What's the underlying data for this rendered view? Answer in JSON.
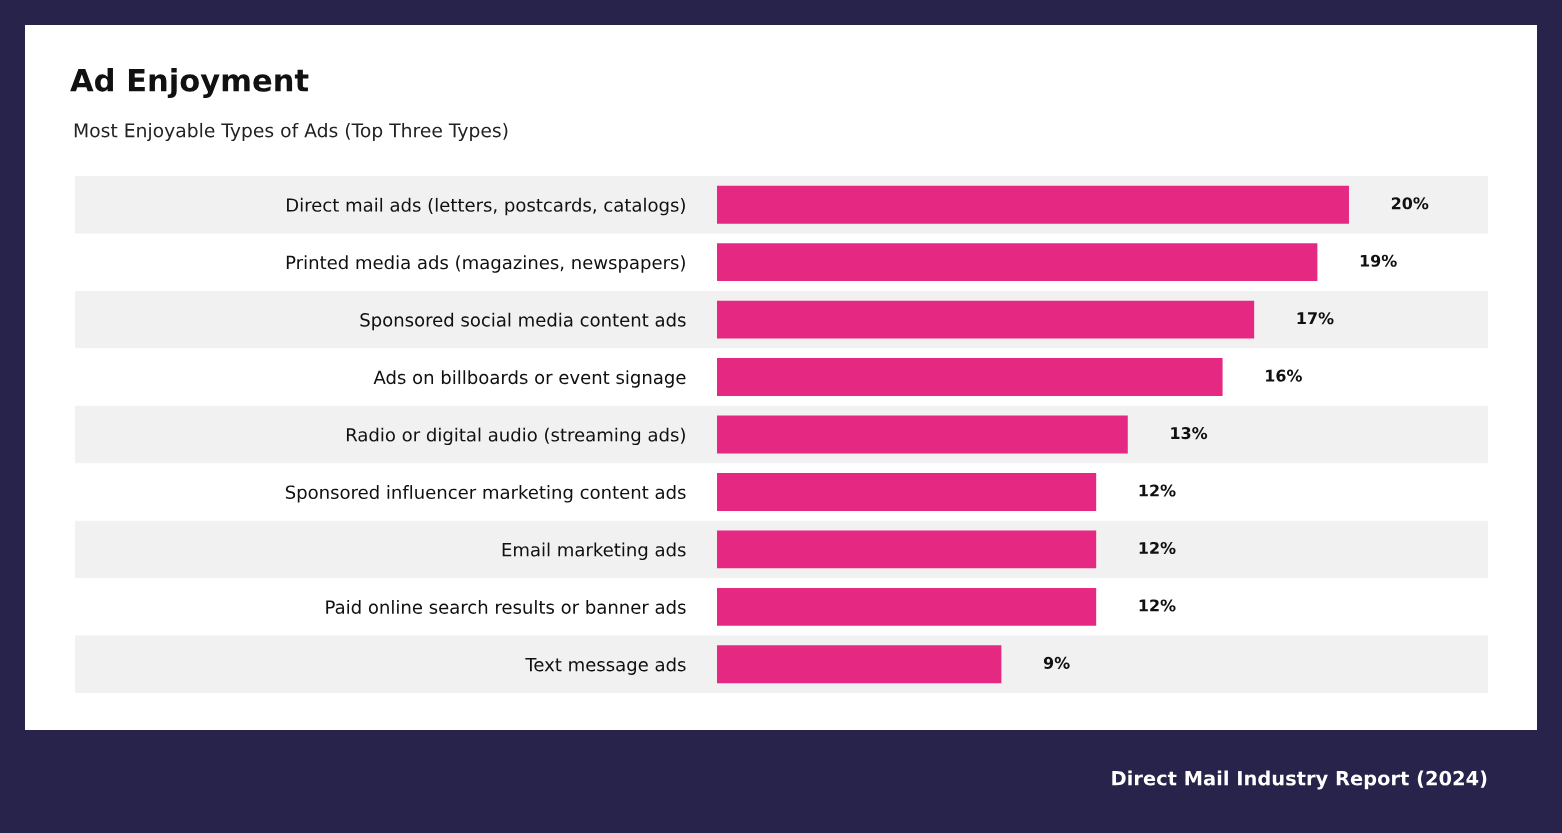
{
  "chart_data": {
    "type": "bar",
    "orientation": "horizontal",
    "title": "Ad Enjoyment",
    "subtitle": "Most Enjoyable Types of Ads (Top Three Types)",
    "categories": [
      "Direct mail ads (letters, postcards, catalogs)",
      "Printed media ads (magazines, newspapers)",
      "Sponsored social media content ads",
      "Ads on billboards or event signage",
      "Radio or digital audio (streaming ads)",
      "Sponsored influencer marketing content ads",
      "Email marketing ads",
      "Paid online search results or banner ads",
      "Text message ads"
    ],
    "values": [
      20,
      19,
      17,
      16,
      13,
      12,
      12,
      12,
      9
    ],
    "value_labels": [
      "20%",
      "19%",
      "17%",
      "16%",
      "13%",
      "12%",
      "12%",
      "12%",
      "9%"
    ],
    "color": "#e52882",
    "annotations": [
      "Direct Mail Industry Report (2024)"
    ]
  }
}
